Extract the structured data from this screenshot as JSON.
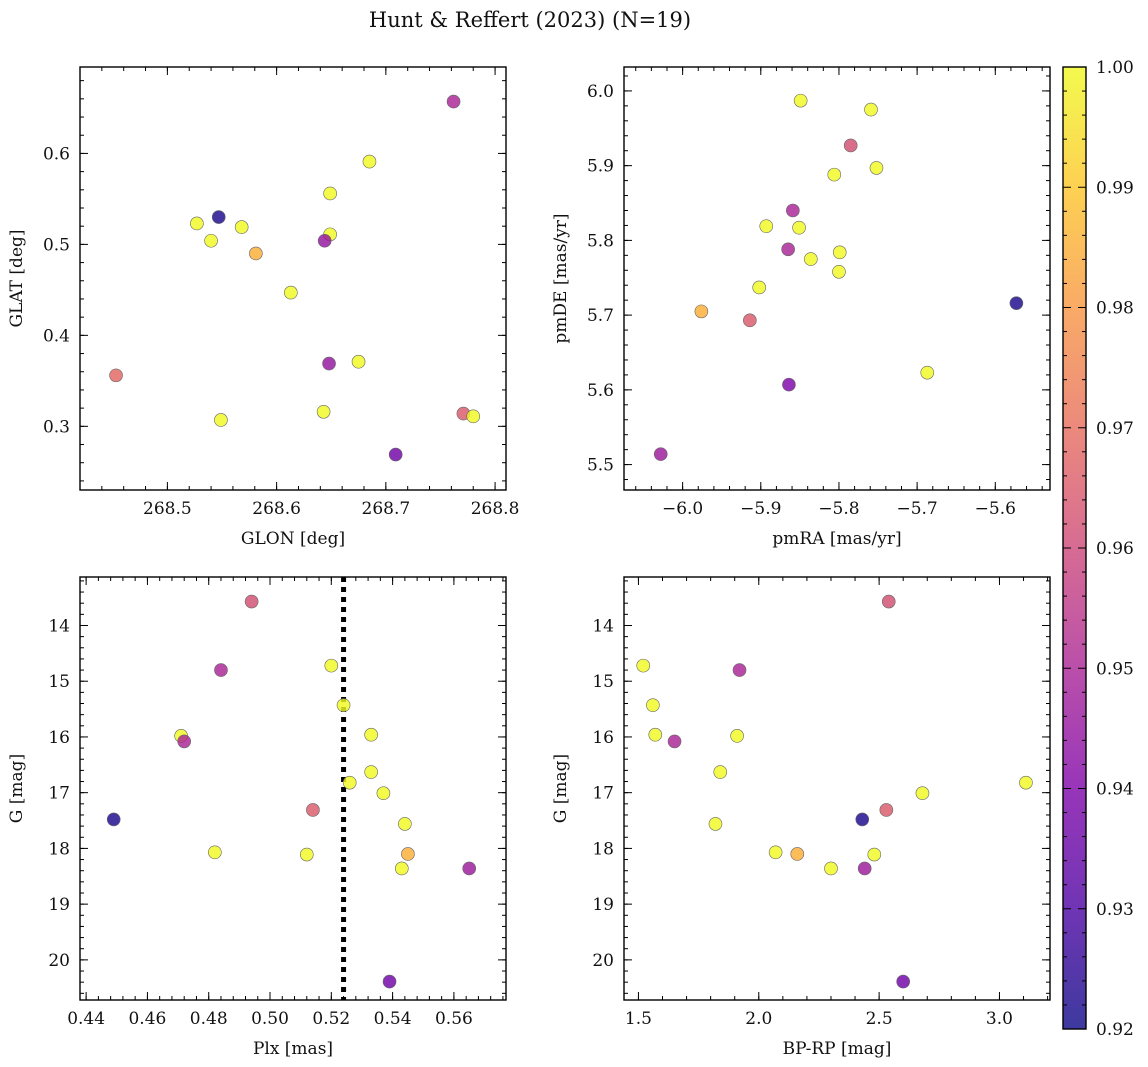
{
  "figure": {
    "title": "Hunt & Reffert (2023) (N=19)"
  },
  "colorbar": {
    "colormap": "plasma",
    "range": [
      0.92,
      1.0
    ],
    "ticks": [
      "0.92",
      "0.93",
      "0.94",
      "0.95",
      "0.96",
      "0.97",
      "0.98",
      "0.99",
      "1.00"
    ]
  },
  "chart_data": [
    {
      "type": "scatter",
      "xlabel": "GLON [deg]",
      "ylabel": "GLAT [deg]",
      "xlim": [
        268.42,
        268.81
      ],
      "ylim": [
        0.23,
        0.695
      ],
      "xticks": [
        "268.5",
        "268.6",
        "268.7",
        "268.8"
      ],
      "yticks": [
        "0.3",
        "0.4",
        "0.5",
        "0.6"
      ],
      "x": [
        268.762,
        268.685,
        268.649,
        268.527,
        268.568,
        268.547,
        268.54,
        268.581,
        268.649,
        268.644,
        268.613,
        268.453,
        268.648,
        268.675,
        268.643,
        268.549,
        268.771,
        268.78,
        268.709
      ],
      "y": [
        0.657,
        0.591,
        0.556,
        0.523,
        0.519,
        0.53,
        0.504,
        0.49,
        0.511,
        0.504,
        0.447,
        0.356,
        0.369,
        0.371,
        0.316,
        0.307,
        0.314,
        0.311,
        0.269
      ],
      "color": [
        0.95,
        1.0,
        1.0,
        1.0,
        1.0,
        0.922,
        1.0,
        0.985,
        1.0,
        0.945,
        1.0,
        0.968,
        0.945,
        1.0,
        1.0,
        1.0,
        0.965,
        1.0,
        0.937
      ]
    },
    {
      "type": "scatter",
      "xlabel": "pmRA [mas/yr]",
      "ylabel": "pmDE [mas/yr]",
      "xlim": [
        -6.075,
        -5.53
      ],
      "ylim": [
        5.466,
        6.032
      ],
      "xticks": [
        "−6.0",
        "−5.9",
        "−5.8",
        "−5.7",
        "−5.6"
      ],
      "yticks": [
        "5.5",
        "5.6",
        "5.7",
        "5.8",
        "5.9",
        "6.0"
      ],
      "x": [
        -5.849,
        -5.759,
        -5.785,
        -5.752,
        -5.806,
        -5.859,
        -5.893,
        -5.851,
        -5.865,
        -5.799,
        -5.836,
        -5.8,
        -5.902,
        -5.976,
        -5.914,
        -5.573,
        -5.687,
        -5.864,
        -6.028
      ],
      "y": [
        5.987,
        5.975,
        5.927,
        5.897,
        5.888,
        5.84,
        5.819,
        5.817,
        5.788,
        5.784,
        5.775,
        5.758,
        5.737,
        5.705,
        5.693,
        5.716,
        5.623,
        5.607,
        5.514
      ],
      "color": [
        1.0,
        1.0,
        0.962,
        1.0,
        1.0,
        0.95,
        1.0,
        1.0,
        0.95,
        1.0,
        1.0,
        1.0,
        1.0,
        0.985,
        0.965,
        0.922,
        1.0,
        0.94,
        0.947
      ]
    },
    {
      "type": "scatter",
      "xlabel": "Plx [mas]",
      "ylabel": "G [mag]",
      "xlim": [
        0.438,
        0.577
      ],
      "ylim": [
        20.72,
        13.13
      ],
      "y_inverted": true,
      "xticks": [
        "0.44",
        "0.46",
        "0.48",
        "0.50",
        "0.52",
        "0.54",
        "0.56"
      ],
      "yticks": [
        "14",
        "15",
        "16",
        "17",
        "18",
        "19",
        "20"
      ],
      "vline": {
        "x": 0.524,
        "style": "dotted"
      },
      "x": [
        0.494,
        0.484,
        0.52,
        0.524,
        0.471,
        0.472,
        0.533,
        0.533,
        0.526,
        0.537,
        0.449,
        0.514,
        0.544,
        0.482,
        0.512,
        0.545,
        0.543,
        0.565,
        0.539
      ],
      "y": [
        13.57,
        14.8,
        14.72,
        15.43,
        15.98,
        16.08,
        15.96,
        16.63,
        16.82,
        17.01,
        17.48,
        17.31,
        17.56,
        18.07,
        18.11,
        18.1,
        18.36,
        18.36,
        20.39
      ],
      "color": [
        0.962,
        0.95,
        1.0,
        1.0,
        1.0,
        0.95,
        1.0,
        1.0,
        1.0,
        1.0,
        0.922,
        0.965,
        1.0,
        1.0,
        1.0,
        0.985,
        1.0,
        0.947,
        0.937
      ]
    },
    {
      "type": "scatter",
      "xlabel": "BP-RP [mag]",
      "ylabel": "G [mag]",
      "xlim": [
        1.44,
        3.21
      ],
      "ylim": [
        20.72,
        13.13
      ],
      "y_inverted": true,
      "xticks": [
        "1.5",
        "2.0",
        "2.5",
        "3.0"
      ],
      "yticks": [
        "14",
        "15",
        "16",
        "17",
        "18",
        "19",
        "20"
      ],
      "x": [
        2.54,
        1.92,
        1.52,
        1.56,
        1.57,
        1.65,
        1.91,
        1.84,
        3.11,
        2.68,
        2.43,
        2.53,
        1.82,
        2.07,
        2.16,
        2.48,
        2.3,
        2.44,
        2.6
      ],
      "y": [
        13.57,
        14.8,
        14.72,
        15.43,
        15.96,
        16.08,
        15.98,
        16.63,
        16.82,
        17.01,
        17.48,
        17.31,
        17.56,
        18.07,
        18.1,
        18.11,
        18.36,
        18.36,
        20.39
      ],
      "color": [
        0.962,
        0.95,
        1.0,
        1.0,
        1.0,
        0.95,
        1.0,
        1.0,
        1.0,
        1.0,
        0.922,
        0.965,
        1.0,
        1.0,
        0.985,
        1.0,
        1.0,
        0.947,
        0.937
      ]
    }
  ]
}
